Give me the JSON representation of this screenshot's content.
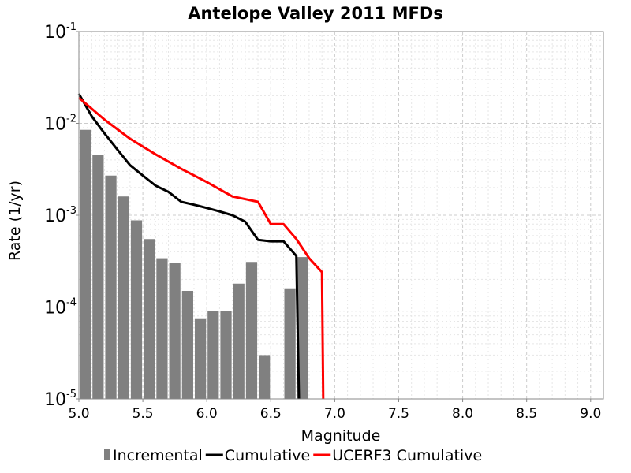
{
  "chart_data": {
    "type": "bar",
    "title": "Antelope Valley 2011 MFDs",
    "xlabel": "Magnitude",
    "ylabel": "Rate (1/yr)",
    "xlim": [
      5.0,
      9.1
    ],
    "ylim": [
      1e-05,
      0.1
    ],
    "y_scale": "log",
    "x_ticks": [
      "5.0",
      "5.5",
      "6.0",
      "6.5",
      "7.0",
      "7.5",
      "8.0",
      "8.5",
      "9.0"
    ],
    "x_tick_values": [
      5.0,
      5.5,
      6.0,
      6.5,
      7.0,
      7.5,
      8.0,
      8.5,
      9.0
    ],
    "y_ticks": [
      {
        "base": "10",
        "exp": "-5",
        "value": 1e-05
      },
      {
        "base": "10",
        "exp": "-4",
        "value": 0.0001
      },
      {
        "base": "10",
        "exp": "-3",
        "value": 0.001
      },
      {
        "base": "10",
        "exp": "-2",
        "value": 0.01
      },
      {
        "base": "10",
        "exp": "-1",
        "value": 0.1
      }
    ],
    "grid": true,
    "legend_position": "bottom",
    "series": [
      {
        "name": "Incremental",
        "kind": "bar",
        "color": "#808080",
        "x": [
          5.05,
          5.15,
          5.25,
          5.35,
          5.45,
          5.55,
          5.65,
          5.75,
          5.85,
          5.95,
          6.05,
          6.15,
          6.25,
          6.35,
          6.45,
          6.55,
          6.65,
          6.75
        ],
        "y": [
          0.0085,
          0.0045,
          0.0027,
          0.0016,
          0.00088,
          0.00055,
          0.00034,
          0.0003,
          0.00015,
          7.4e-05,
          9e-05,
          9e-05,
          0.00018,
          0.00031,
          3e-05,
          null,
          0.00016,
          0.00035
        ]
      },
      {
        "name": "Cumulative",
        "kind": "line",
        "color": "#000000",
        "x": [
          5.0,
          5.1,
          5.2,
          5.3,
          5.4,
          5.5,
          5.6,
          5.7,
          5.8,
          5.9,
          6.0,
          6.1,
          6.2,
          6.3,
          6.4,
          6.5,
          6.6,
          6.7,
          6.72
        ],
        "y": [
          0.021,
          0.012,
          0.0078,
          0.0052,
          0.0035,
          0.0027,
          0.0021,
          0.0018,
          0.0014,
          0.0013,
          0.0012,
          0.0011,
          0.001,
          0.00085,
          0.00054,
          0.00052,
          0.00052,
          0.00036,
          1e-05
        ]
      },
      {
        "name": "UCERF3 Cumulative",
        "kind": "line",
        "color": "#ff0000",
        "x": [
          5.0,
          5.2,
          5.4,
          5.6,
          5.8,
          6.0,
          6.2,
          6.4,
          6.5,
          6.6,
          6.7,
          6.8,
          6.9,
          6.91
        ],
        "y": [
          0.019,
          0.011,
          0.0068,
          0.0046,
          0.0032,
          0.0023,
          0.0016,
          0.0014,
          0.0008,
          0.0008,
          0.00055,
          0.00034,
          0.00024,
          1e-05
        ]
      }
    ]
  }
}
